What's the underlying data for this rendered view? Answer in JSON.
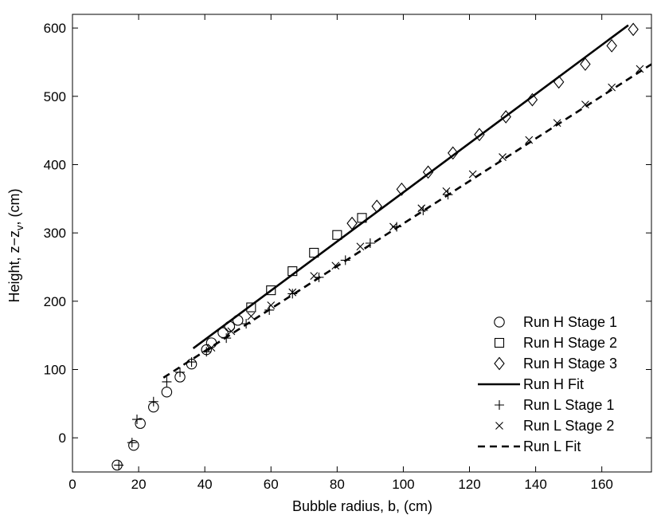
{
  "chart_data": {
    "type": "scatter",
    "xlabel": "Bubble radius, b, (cm)",
    "ylabel_main": "Height, z−z",
    "ylabel_sub": "v",
    "ylabel_tail": ", (cm)",
    "xlim": [
      0,
      175
    ],
    "ylim": [
      -50,
      620
    ],
    "xticks": [
      0,
      20,
      40,
      60,
      80,
      100,
      120,
      140,
      160
    ],
    "yticks": [
      0,
      100,
      200,
      300,
      400,
      500,
      600
    ],
    "grid": false,
    "legend_position": "bottom-right",
    "series": [
      {
        "name": "Run H Stage 1",
        "marker": "circle",
        "color": "#000000",
        "x": [
          13.5,
          18.5,
          20.5,
          24.5,
          28.5,
          32.5,
          36,
          40.5,
          42,
          45.5,
          47.5,
          50
        ],
        "y": [
          -40,
          -11,
          21,
          45,
          67,
          89,
          108,
          129,
          139,
          154,
          163,
          172
        ]
      },
      {
        "name": "Run H Stage 2",
        "marker": "square",
        "color": "#000000",
        "x": [
          54,
          60,
          66.5,
          73,
          80,
          87.5
        ],
        "y": [
          191,
          216,
          244,
          271,
          297,
          322
        ]
      },
      {
        "name": "Run H Stage 3",
        "marker": "diamond",
        "color": "#000000",
        "x": [
          84.5,
          92,
          99.5,
          107.5,
          115,
          123,
          131,
          139,
          147,
          155,
          163,
          169.5
        ],
        "y": [
          314,
          339,
          364,
          389,
          417,
          444,
          470,
          495,
          521,
          547,
          574,
          598
        ]
      },
      {
        "name": "Run H Fit",
        "type": "line",
        "style": "solid",
        "color": "#000000",
        "x": [
          36.5,
          168
        ],
        "y": [
          131,
          604
        ]
      },
      {
        "name": "Run L Stage 1",
        "marker": "plus",
        "color": "#000000",
        "x": [
          14,
          18,
          19.5,
          24.5,
          28.5,
          32.5,
          36,
          40.5,
          46.5,
          52.5,
          59.5,
          66.5,
          74.5,
          82.5,
          90,
          98,
          106,
          113.5
        ],
        "y": [
          -40,
          -7,
          27,
          53,
          82,
          96,
          111,
          126,
          146,
          167,
          187,
          211,
          235,
          260,
          285,
          309,
          333,
          356
        ]
      },
      {
        "name": "Run L Stage 2",
        "marker": "x",
        "color": "#000000",
        "x": [
          42,
          48,
          54,
          60,
          66.5,
          73,
          79.5,
          87,
          97,
          105.5,
          113,
          121,
          130,
          138,
          146.5,
          155,
          163,
          171.5
        ],
        "y": [
          132,
          156,
          178,
          194,
          213,
          237,
          252,
          280,
          309,
          336,
          361,
          386,
          411,
          436,
          461,
          488,
          513,
          540
        ]
      },
      {
        "name": "Run L Fit",
        "type": "line",
        "style": "dashed",
        "color": "#000000",
        "x": [
          27.5,
          175
        ],
        "y": [
          88,
          547
        ]
      }
    ]
  }
}
